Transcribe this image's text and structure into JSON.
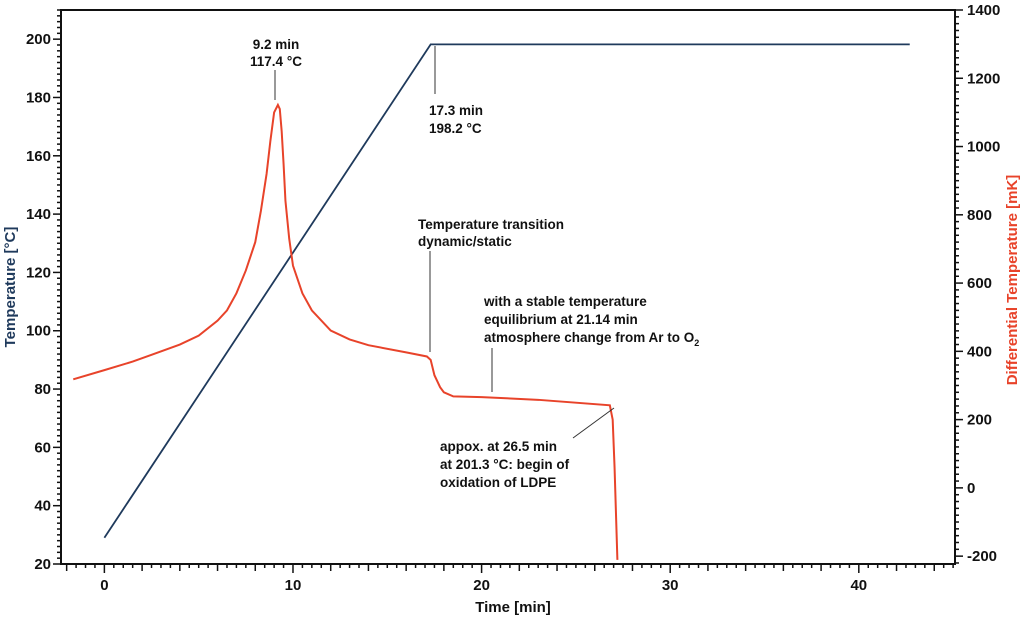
{
  "chart_data": {
    "type": "line",
    "title": "",
    "xlabel": "Time [min]",
    "ylabel": "Temperature [°C]",
    "y2label": "Differential Temperature [mK]",
    "xlim": [
      -2.3,
      45.1
    ],
    "ylim": [
      20,
      210
    ],
    "y2lim": [
      -223,
      1400
    ],
    "xticks": [
      0,
      10,
      20,
      30,
      40
    ],
    "yticks": [
      20,
      40,
      60,
      80,
      100,
      120,
      140,
      160,
      180,
      200
    ],
    "y2ticks": [
      -200,
      0,
      200,
      400,
      600,
      800,
      1000,
      1200,
      1400
    ],
    "grid": false,
    "colors": {
      "temperature": "#1f3a5c",
      "differential": "#e8432a",
      "axis": "#111111"
    },
    "series": [
      {
        "name": "Temperature [°C]",
        "axis": "left",
        "x": [
          0,
          17.3,
          42.7
        ],
        "y": [
          29,
          198.2,
          198.2
        ]
      },
      {
        "name": "Differential Temperature [mK]",
        "axis": "right",
        "x": [
          -1.65,
          0,
          1.5,
          2.5,
          4,
          5,
          6,
          6.5,
          7,
          7.5,
          8,
          8.3,
          8.6,
          8.8,
          9.0,
          9.2,
          9.3,
          9.4,
          9.5,
          9.6,
          9.8,
          10,
          10.5,
          11,
          12,
          13,
          14,
          16,
          17.1,
          17.3,
          17.5,
          17.8,
          18,
          18.5,
          20,
          23,
          26.8,
          26.95,
          27.05,
          27.2
        ],
        "y": [
          318,
          345,
          370,
          390,
          420,
          446,
          490,
          520,
          570,
          637,
          720,
          812,
          920,
          1016,
          1100,
          1122,
          1110,
          1045,
          950,
          841,
          730,
          651,
          570,
          520,
          461,
          435,
          418,
          397,
          385,
          375,
          330,
          295,
          280,
          268,
          266,
          258,
          242,
          200,
          60,
          -211
        ]
      }
    ],
    "annotations": [
      {
        "id": "peak",
        "lines": [
          "9.2 min",
          "117.4 °C"
        ]
      },
      {
        "id": "plateau",
        "lines": [
          "17.3 min",
          "198.2 °C"
        ]
      },
      {
        "id": "transition",
        "lines": [
          "Temperature transition",
          "dynamic/static"
        ]
      },
      {
        "id": "atmosphere",
        "lines": [
          "with a stable temperature",
          "equilibrium at 21.14 min",
          "atmosphere change from Ar to O"
        ],
        "subscript": "2"
      },
      {
        "id": "oxidation",
        "lines": [
          "appox. at 26.5 min",
          "at 201.3 °C: begin of",
          "oxidation of LDPE"
        ]
      }
    ]
  }
}
